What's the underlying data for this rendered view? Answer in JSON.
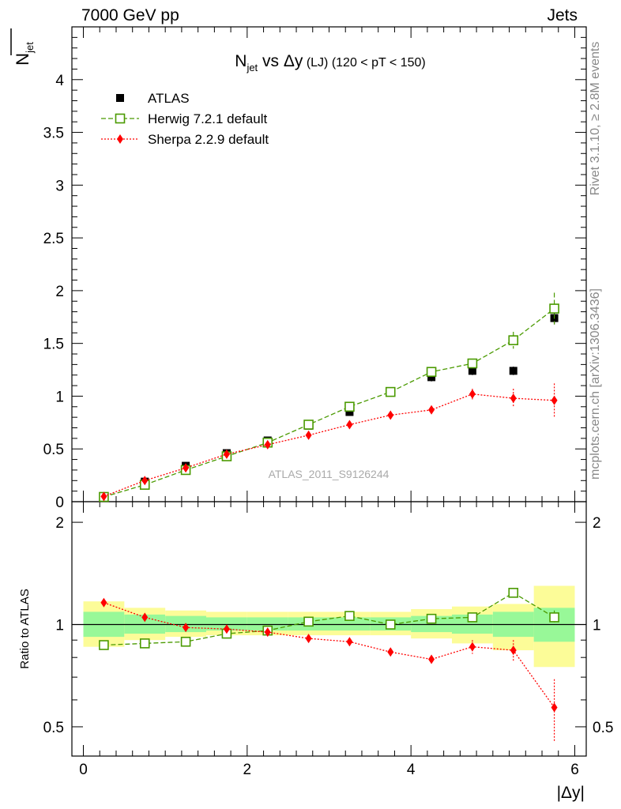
{
  "header": {
    "left": "7000 GeV pp",
    "right": "Jets"
  },
  "side_labels": {
    "rivet": "Rivet 3.1.10, ≥ 2.8M events",
    "mcplots": "mcplots.cern.ch [arXiv:1306.3436]"
  },
  "watermark": "ATLAS_2011_S9126244",
  "chart_data": {
    "type": "scatter",
    "title": {
      "main": "N",
      "main_sub": "jet",
      "vs": " vs Δy",
      "paren": " (LJ)",
      "range": "  (120 < pT < 150)"
    },
    "ylabel_main": {
      "main": "N",
      "sub": "jet",
      "overline": true
    },
    "ylabel_ratio": "Ratio to ATLAS",
    "xlabel": "|Δy|",
    "x": [
      0.25,
      0.75,
      1.25,
      1.75,
      2.25,
      2.75,
      3.25,
      3.75,
      4.25,
      4.75,
      5.25,
      5.75
    ],
    "xlim": [
      -0.14,
      6.14
    ],
    "ylim_main": [
      0,
      4.5
    ],
    "ylim_ratio": [
      0.41,
      2.3
    ],
    "ratio_scale": "log",
    "xticks": [
      0,
      2,
      4,
      6
    ],
    "yticks_main": [
      0,
      0.5,
      1,
      1.5,
      2,
      2.5,
      3,
      3.5,
      4
    ],
    "yticks_ratio": [
      0.5,
      1,
      2
    ],
    "legend": {
      "position": "top-left"
    },
    "series": [
      {
        "name": "ATLAS",
        "color": "#000000",
        "marker": "square-filled",
        "values": [
          0.05,
          0.19,
          0.34,
          0.46,
          0.58,
          0.72,
          0.85,
          1.04,
          1.18,
          1.24,
          1.24,
          1.74
        ],
        "errors": [
          0.01,
          0.02,
          0.02,
          0.02,
          0.03,
          0.03,
          0.03,
          0.03,
          0.04,
          0.04,
          0.04,
          0.06
        ]
      },
      {
        "name": "Herwig 7.2.1 default",
        "color": "#4a9a00",
        "marker": "square-open",
        "line": "dashed",
        "values": [
          0.045,
          0.16,
          0.3,
          0.43,
          0.56,
          0.73,
          0.9,
          1.04,
          1.23,
          1.31,
          1.53,
          1.83
        ],
        "errors": [
          0.005,
          0.01,
          0.01,
          0.01,
          0.01,
          0.02,
          0.02,
          0.02,
          0.03,
          0.04,
          0.08,
          0.15
        ],
        "ratio": [
          0.87,
          0.88,
          0.89,
          0.94,
          0.96,
          1.02,
          1.06,
          1.0,
          1.04,
          1.05,
          1.24,
          1.05
        ],
        "ratio_errors": [
          0.02,
          0.01,
          0.01,
          0.01,
          0.01,
          0.01,
          0.01,
          0.01,
          0.02,
          0.02,
          0.04,
          0.05
        ]
      },
      {
        "name": "Sherpa 2.2.9 default",
        "color": "#ff0000",
        "marker": "diamond-filled",
        "line": "dotted",
        "values": [
          0.05,
          0.2,
          0.32,
          0.45,
          0.54,
          0.63,
          0.73,
          0.82,
          0.87,
          1.02,
          0.98,
          0.96
        ],
        "errors": [
          0.005,
          0.01,
          0.01,
          0.01,
          0.01,
          0.02,
          0.02,
          0.02,
          0.03,
          0.05,
          0.09,
          0.16
        ],
        "ratio": [
          1.16,
          1.05,
          0.98,
          0.97,
          0.95,
          0.91,
          0.89,
          0.83,
          0.79,
          0.86,
          0.84,
          0.57
        ],
        "ratio_errors": [
          0.03,
          0.01,
          0.01,
          0.01,
          0.01,
          0.01,
          0.01,
          0.01,
          0.02,
          0.04,
          0.06,
          0.12
        ]
      }
    ],
    "ratio_bands": {
      "edges": [
        0,
        0.5,
        1,
        1.5,
        2,
        2.5,
        3,
        3.5,
        4,
        4.5,
        5,
        5.5,
        6
      ],
      "stat_lo": [
        0.92,
        0.94,
        0.95,
        0.96,
        0.96,
        0.96,
        0.96,
        0.96,
        0.95,
        0.94,
        0.92,
        0.89
      ],
      "stat_hi": [
        1.09,
        1.07,
        1.06,
        1.05,
        1.05,
        1.05,
        1.05,
        1.05,
        1.06,
        1.07,
        1.09,
        1.12
      ],
      "tot_lo": [
        0.86,
        0.9,
        0.92,
        0.93,
        0.93,
        0.93,
        0.93,
        0.93,
        0.91,
        0.88,
        0.84,
        0.75
      ],
      "tot_hi": [
        1.17,
        1.12,
        1.1,
        1.09,
        1.09,
        1.09,
        1.09,
        1.09,
        1.11,
        1.13,
        1.15,
        1.3
      ],
      "stat_color": "#98f898",
      "tot_color": "#fcfc98"
    }
  }
}
